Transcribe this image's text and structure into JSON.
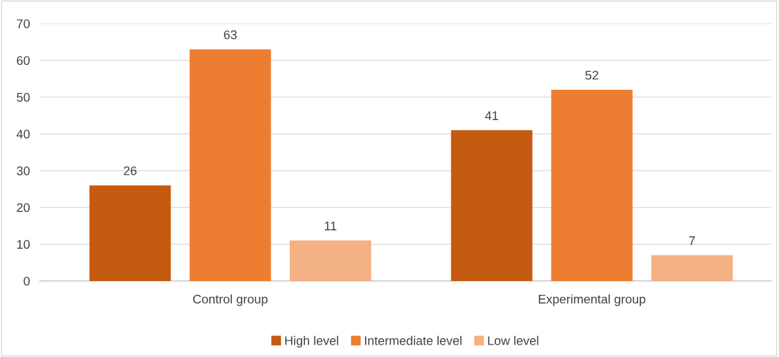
{
  "chart_data": {
    "type": "bar",
    "categories": [
      "Control group",
      "Experimental group"
    ],
    "series": [
      {
        "name": "High level",
        "color": "#c55a11",
        "values": [
          26,
          41
        ]
      },
      {
        "name": "Intermediate level",
        "color": "#ed7d31",
        "values": [
          63,
          52
        ]
      },
      {
        "name": "Low level",
        "color": "#f4b183",
        "values": [
          11,
          7
        ]
      }
    ],
    "ylim": [
      0,
      70
    ],
    "yticks": [
      0,
      10,
      20,
      30,
      40,
      50,
      60,
      70
    ],
    "grid": "y",
    "legend": "bottom",
    "data_labels": true
  }
}
